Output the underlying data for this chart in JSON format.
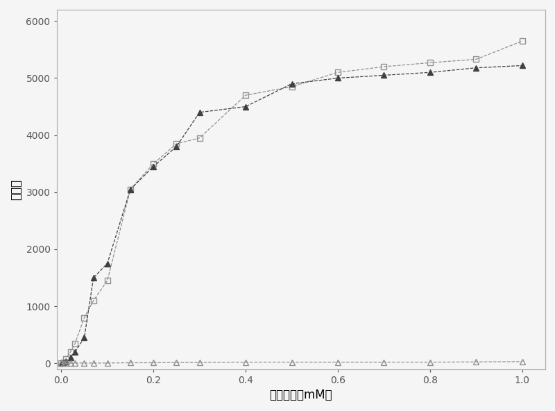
{
  "series": [
    {
      "label": "open_square",
      "x": [
        0.0,
        0.005,
        0.01,
        0.02,
        0.03,
        0.05,
        0.07,
        0.1,
        0.15,
        0.2,
        0.25,
        0.3,
        0.4,
        0.5,
        0.6,
        0.7,
        0.8,
        0.9,
        1.0
      ],
      "y": [
        0,
        20,
        80,
        200,
        350,
        800,
        1100,
        1450,
        3050,
        3500,
        3850,
        3950,
        4700,
        4850,
        5100,
        5200,
        5270,
        5330,
        5650
      ],
      "marker": "s",
      "fillstyle": "none",
      "color": "#909090",
      "linestyle": "--"
    },
    {
      "label": "filled_triangle",
      "x": [
        0.0,
        0.005,
        0.01,
        0.02,
        0.03,
        0.05,
        0.07,
        0.1,
        0.15,
        0.2,
        0.25,
        0.3,
        0.4,
        0.5,
        0.6,
        0.7,
        0.8,
        0.9,
        1.0
      ],
      "y": [
        0,
        10,
        30,
        100,
        200,
        450,
        1500,
        1750,
        3050,
        3450,
        3800,
        4400,
        4500,
        4900,
        5000,
        5050,
        5100,
        5180,
        5220
      ],
      "marker": "^",
      "fillstyle": "full",
      "color": "#404040",
      "linestyle": "--"
    },
    {
      "label": "open_triangle",
      "x": [
        0.0,
        0.005,
        0.01,
        0.02,
        0.03,
        0.05,
        0.07,
        0.1,
        0.15,
        0.2,
        0.25,
        0.3,
        0.4,
        0.5,
        0.6,
        0.7,
        0.8,
        0.9,
        1.0
      ],
      "y": [
        0,
        0,
        0,
        0,
        5,
        5,
        5,
        5,
        10,
        10,
        15,
        15,
        20,
        20,
        20,
        20,
        20,
        25,
        30
      ],
      "marker": "^",
      "fillstyle": "none",
      "color": "#909090",
      "linestyle": "--"
    }
  ],
  "xlabel": "辅酶浓度（mM）",
  "ylabel": "荧光値",
  "xlim": [
    -0.01,
    1.05
  ],
  "ylim": [
    -100,
    6200
  ],
  "xticks": [
    0.0,
    0.2,
    0.4,
    0.6,
    0.8,
    1.0
  ],
  "yticks": [
    0,
    1000,
    2000,
    3000,
    4000,
    5000,
    6000
  ],
  "background_color": "#f5f5f5",
  "linewidth": 0.9,
  "markersize": 6,
  "xlabel_fontsize": 12,
  "ylabel_fontsize": 12,
  "tick_fontsize": 10
}
